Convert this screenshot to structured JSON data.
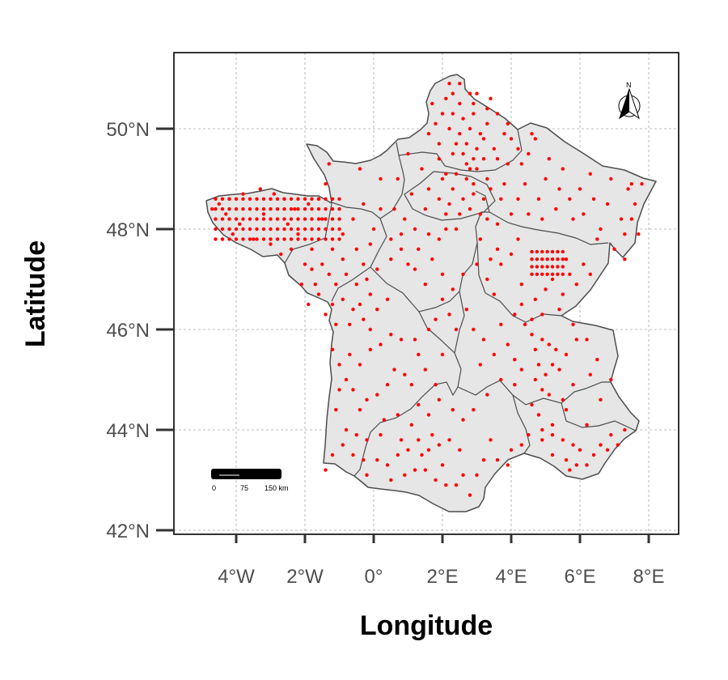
{
  "map": {
    "x_axis_title": "Longitude",
    "y_axis_title": "Latitude",
    "x_ticks": [
      {
        "value": -4,
        "label": "4°W"
      },
      {
        "value": -2,
        "label": "2°W"
      },
      {
        "value": 0,
        "label": "0°"
      },
      {
        "value": 2,
        "label": "2°E"
      },
      {
        "value": 4,
        "label": "4°E"
      },
      {
        "value": 6,
        "label": "6°E"
      },
      {
        "value": 8,
        "label": "8°E"
      }
    ],
    "y_ticks": [
      {
        "value": 42,
        "label": "42°N"
      },
      {
        "value": 44,
        "label": "44°N"
      },
      {
        "value": 46,
        "label": "46°N"
      },
      {
        "value": 48,
        "label": "48°N"
      },
      {
        "value": 50,
        "label": "50°N"
      }
    ],
    "x_range": [
      -5.8,
      8.8
    ],
    "y_range": [
      41.9,
      51.5
    ],
    "scale_bar": {
      "labels": [
        "0",
        "75",
        "150 km"
      ]
    },
    "north_arrow": {
      "label": "N"
    },
    "colors": {
      "land": "#e6e6e6",
      "border": "#4d4d4d",
      "points": "#ff0000",
      "grid": "#a6a6a6"
    }
  },
  "chart_data": {
    "type": "scatter",
    "xlabel": "Longitude",
    "ylabel": "Latitude",
    "xlim": [
      -5.8,
      8.8
    ],
    "ylim": [
      41.9,
      51.5
    ],
    "grid": true,
    "brittany_grid": {
      "lon_start": -4.6,
      "lon_end": -1.0,
      "lat_start": 47.8,
      "lat_end": 48.7,
      "step": 0.2
    },
    "burgundy_grid": {
      "lon_start": 4.6,
      "lon_end": 5.6,
      "lat_start": 47.1,
      "lat_end": 47.6,
      "step": 0.15
    },
    "points": [
      [
        2.2,
        50.9
      ],
      [
        2.5,
        50.9
      ],
      [
        2.3,
        50.7
      ],
      [
        2.8,
        50.7
      ],
      [
        2.9,
        50.5
      ],
      [
        3.4,
        50.6
      ],
      [
        3.6,
        50.3
      ],
      [
        3.9,
        50.1
      ],
      [
        3.8,
        49.9
      ],
      [
        2.0,
        50.3
      ],
      [
        2.3,
        50.3
      ],
      [
        2.6,
        50.2
      ],
      [
        2.9,
        50.3
      ],
      [
        2.2,
        50.0
      ],
      [
        2.5,
        49.9
      ],
      [
        2.8,
        50.0
      ],
      [
        3.1,
        49.9
      ],
      [
        3.3,
        50.1
      ],
      [
        2.4,
        49.7
      ],
      [
        2.7,
        49.7
      ],
      [
        3.0,
        49.6
      ],
      [
        3.2,
        49.8
      ],
      [
        3.5,
        49.6
      ],
      [
        2.3,
        49.5
      ],
      [
        2.6,
        49.5
      ],
      [
        2.9,
        49.4
      ],
      [
        3.2,
        49.4
      ],
      [
        1.9,
        49.7
      ],
      [
        1.9,
        49.4
      ],
      [
        2.1,
        49.1
      ],
      [
        2.4,
        49.1
      ],
      [
        2.7,
        49.0
      ],
      [
        3.0,
        49.2
      ],
      [
        3.3,
        49.0
      ],
      [
        2.3,
        48.8
      ],
      [
        2.6,
        48.6
      ],
      [
        2.9,
        48.7
      ],
      [
        3.2,
        48.6
      ],
      [
        3.4,
        48.8
      ],
      [
        1.6,
        48.8
      ],
      [
        1.9,
        48.6
      ],
      [
        2.2,
        48.5
      ],
      [
        2.5,
        48.3
      ],
      [
        2.8,
        48.4
      ],
      [
        3.1,
        48.3
      ],
      [
        3.8,
        48.9
      ],
      [
        3.7,
        48.6
      ],
      [
        3.9,
        49.3
      ],
      [
        4.3,
        49.3
      ],
      [
        4.5,
        49.5
      ],
      [
        4.2,
        49.6
      ],
      [
        4.7,
        49.8
      ],
      [
        5.1,
        49.4
      ],
      [
        5.5,
        49.2
      ],
      [
        5.0,
        49.0
      ],
      [
        5.4,
        48.8
      ],
      [
        6.3,
        49.1
      ],
      [
        6.0,
        48.8
      ],
      [
        6.4,
        48.6
      ],
      [
        6.1,
        48.3
      ],
      [
        5.7,
        48.6
      ],
      [
        4.4,
        48.9
      ],
      [
        4.8,
        48.6
      ],
      [
        4.2,
        48.6
      ],
      [
        4.5,
        48.3
      ],
      [
        4.9,
        48.2
      ],
      [
        7.4,
        48.8
      ],
      [
        7.6,
        48.5
      ],
      [
        7.5,
        48.2
      ],
      [
        7.7,
        47.9
      ],
      [
        7.3,
        47.9
      ],
      [
        7.5,
        48.9
      ],
      [
        7.2,
        48.2
      ],
      [
        7.8,
        48.9
      ],
      [
        5.8,
        48.2
      ],
      [
        3.1,
        47.8
      ],
      [
        3.6,
        47.6
      ],
      [
        3.4,
        47.4
      ],
      [
        3.7,
        47.3
      ],
      [
        3.3,
        47.0
      ],
      [
        3.5,
        46.7
      ],
      [
        4.3,
        46.9
      ],
      [
        4.7,
        46.6
      ],
      [
        5.0,
        46.8
      ],
      [
        5.2,
        47.0
      ],
      [
        5.6,
        47.4
      ],
      [
        4.9,
        46.3
      ],
      [
        4.4,
        46.1
      ],
      [
        4.6,
        45.9
      ],
      [
        4.7,
        45.6
      ],
      [
        4.9,
        45.8
      ],
      [
        5.1,
        45.7
      ],
      [
        5.3,
        45.6
      ],
      [
        5.6,
        45.5
      ],
      [
        4.8,
        45.3
      ],
      [
        5.0,
        45.1
      ],
      [
        5.2,
        45.3
      ],
      [
        4.7,
        45.0
      ],
      [
        4.9,
        44.8
      ],
      [
        5.1,
        44.7
      ],
      [
        5.4,
        45.2
      ],
      [
        4.6,
        44.5
      ],
      [
        4.8,
        44.3
      ],
      [
        5.2,
        44.1
      ],
      [
        5.6,
        44.4
      ],
      [
        4.5,
        43.9
      ],
      [
        4.9,
        43.8
      ],
      [
        5.2,
        43.9
      ],
      [
        5.5,
        43.8
      ],
      [
        5.8,
        43.7
      ],
      [
        4.3,
        43.7
      ],
      [
        6.0,
        43.6
      ],
      [
        5.6,
        43.4
      ],
      [
        5.9,
        43.3
      ],
      [
        6.6,
        43.7
      ],
      [
        5.7,
        43.2
      ],
      [
        6.4,
        43.5
      ],
      [
        7.1,
        43.7
      ],
      [
        4.0,
        43.6
      ],
      [
        3.9,
        43.3
      ],
      [
        3.6,
        43.4
      ],
      [
        3.2,
        43.4
      ],
      [
        3.0,
        43.1
      ],
      [
        2.6,
        43.1
      ],
      [
        2.8,
        42.7
      ],
      [
        2.4,
        42.9
      ],
      [
        2.1,
        42.9
      ],
      [
        1.8,
        43.0
      ],
      [
        1.5,
        43.2
      ],
      [
        1.4,
        43.5
      ],
      [
        1.6,
        43.6
      ],
      [
        1.9,
        43.7
      ],
      [
        2.2,
        43.8
      ],
      [
        1.7,
        43.9
      ],
      [
        1.3,
        43.8
      ],
      [
        1.0,
        43.6
      ],
      [
        0.7,
        43.5
      ],
      [
        0.4,
        43.3
      ],
      [
        0.1,
        43.4
      ],
      [
        -0.3,
        43.4
      ],
      [
        -0.6,
        43.5
      ],
      [
        -0.9,
        43.7
      ],
      [
        -0.5,
        43.9
      ],
      [
        -0.2,
        43.8
      ],
      [
        0.2,
        43.9
      ],
      [
        -1.2,
        43.5
      ],
      [
        -1.4,
        43.2
      ],
      [
        -0.8,
        44.0
      ],
      [
        -0.4,
        44.4
      ],
      [
        -0.2,
        44.6
      ],
      [
        0.1,
        44.7
      ],
      [
        0.4,
        44.9
      ],
      [
        0.6,
        45.2
      ],
      [
        -0.6,
        44.8
      ],
      [
        -0.8,
        45.0
      ],
      [
        -1.0,
        45.3
      ],
      [
        -0.7,
        45.5
      ],
      [
        -0.4,
        45.3
      ],
      [
        -0.1,
        45.6
      ],
      [
        0.2,
        45.7
      ],
      [
        0.5,
        45.9
      ],
      [
        0.8,
        45.8
      ],
      [
        1.2,
        45.8
      ],
      [
        1.6,
        46.0
      ],
      [
        1.3,
        45.5
      ],
      [
        1.5,
        45.2
      ],
      [
        0.9,
        45.1
      ],
      [
        1.1,
        44.9
      ],
      [
        1.3,
        44.5
      ],
      [
        0.7,
        44.3
      ],
      [
        0.3,
        44.2
      ],
      [
        -0.1,
        46.0
      ],
      [
        -0.3,
        46.2
      ],
      [
        -0.6,
        46.4
      ],
      [
        -0.9,
        46.6
      ],
      [
        -1.2,
        46.5
      ],
      [
        -1.4,
        46.3
      ],
      [
        -0.7,
        46.1
      ],
      [
        -0.4,
        46.5
      ],
      [
        -0.1,
        46.7
      ],
      [
        0.1,
        46.4
      ],
      [
        0.4,
        46.6
      ],
      [
        -0.2,
        47.0
      ],
      [
        -0.5,
        46.9
      ],
      [
        -0.8,
        47.1
      ],
      [
        -1.1,
        46.9
      ],
      [
        -0.3,
        47.3
      ],
      [
        0.1,
        47.2
      ],
      [
        0.5,
        47.4
      ],
      [
        0.8,
        47.6
      ],
      [
        1.0,
        47.3
      ],
      [
        1.3,
        47.6
      ],
      [
        1.6,
        47.9
      ],
      [
        1.9,
        47.8
      ],
      [
        2.1,
        48.0
      ],
      [
        1.2,
        48.0
      ],
      [
        0.9,
        48.2
      ],
      [
        0.6,
        48.4
      ],
      [
        0.2,
        48.4
      ],
      [
        -0.3,
        48.5
      ],
      [
        -0.6,
        48.2
      ],
      [
        -0.9,
        47.9
      ],
      [
        -1.2,
        47.6
      ],
      [
        -1.5,
        47.3
      ],
      [
        -1.8,
        47.2
      ],
      [
        -2.0,
        47.3
      ],
      [
        -1.7,
        46.9
      ],
      [
        -2.1,
        46.9
      ],
      [
        -1.6,
        48.6
      ],
      [
        -1.4,
        48.9
      ],
      [
        -1.3,
        49.3
      ],
      [
        -0.4,
        49.2
      ],
      [
        0.2,
        49.0
      ],
      [
        1.0,
        49.5
      ],
      [
        1.4,
        49.2
      ],
      [
        0.7,
        49.0
      ],
      [
        1.1,
        48.7
      ],
      [
        1.5,
        48.4
      ],
      [
        1.2,
        47.2
      ],
      [
        1.5,
        46.9
      ],
      [
        2.0,
        46.6
      ],
      [
        2.3,
        46.8
      ],
      [
        2.6,
        47.1
      ],
      [
        3.0,
        47.3
      ],
      [
        2.7,
        46.4
      ],
      [
        2.2,
        46.3
      ],
      [
        1.8,
        46.2
      ],
      [
        2.9,
        46.0
      ],
      [
        3.2,
        45.8
      ],
      [
        3.5,
        45.5
      ],
      [
        3.1,
        45.3
      ],
      [
        3.7,
        45.0
      ],
      [
        3.3,
        44.7
      ],
      [
        2.9,
        44.4
      ],
      [
        2.6,
        44.2
      ],
      [
        2.3,
        44.4
      ],
      [
        1.9,
        44.6
      ],
      [
        4.1,
        44.9
      ],
      [
        -2.7,
        47.5
      ],
      [
        -2.4,
        47.6
      ],
      [
        -3.0,
        47.7
      ],
      [
        -4.1,
        47.9
      ],
      [
        -4.4,
        47.8
      ],
      [
        -3.5,
        47.8
      ],
      [
        -3.9,
        48.1
      ],
      [
        -3.2,
        48.3
      ],
      [
        -2.5,
        48.1
      ],
      [
        -2.2,
        47.9
      ],
      [
        -1.8,
        47.6
      ],
      [
        -1.5,
        48.2
      ],
      [
        -1.9,
        48.5
      ],
      [
        -2.3,
        48.4
      ],
      [
        -2.6,
        48.6
      ],
      [
        -2.9,
        48.7
      ],
      [
        -3.3,
        48.8
      ],
      [
        -3.8,
        48.7
      ],
      [
        -4.2,
        48.6
      ],
      [
        -4.5,
        48.5
      ],
      [
        -4.7,
        48.4
      ],
      [
        -4.3,
        48.3
      ],
      [
        1.8,
        50.1
      ],
      [
        1.6,
        49.9
      ],
      [
        2.0,
        49.0
      ],
      [
        2.9,
        48.9
      ],
      [
        3.3,
        48.2
      ],
      [
        4.0,
        48.3
      ],
      [
        5.3,
        48.4
      ],
      [
        6.6,
        48.0
      ],
      [
        7.0,
        47.6
      ],
      [
        7.3,
        47.4
      ],
      [
        6.8,
        48.5
      ],
      [
        6.9,
        49.0
      ],
      [
        6.5,
        47.8
      ],
      [
        6.1,
        47.3
      ],
      [
        5.9,
        46.9
      ],
      [
        5.4,
        46.4
      ],
      [
        5.8,
        46.1
      ],
      [
        6.2,
        45.8
      ],
      [
        6.5,
        45.4
      ],
      [
        6.9,
        45.0
      ],
      [
        6.6,
        44.6
      ],
      [
        6.2,
        44.1
      ],
      [
        6.9,
        43.9
      ],
      [
        7.3,
        44.0
      ],
      [
        3.7,
        46.1
      ],
      [
        3.9,
        45.7
      ],
      [
        4.1,
        45.4
      ],
      [
        4.3,
        45.2
      ],
      [
        0.5,
        47.8
      ],
      [
        0.8,
        47.9
      ],
      [
        -0.1,
        47.7
      ],
      [
        -0.5,
        47.6
      ],
      [
        -0.9,
        47.4
      ],
      [
        -1.3,
        47.1
      ],
      [
        0.0,
        48.0
      ],
      [
        1.7,
        47.4
      ],
      [
        2.0,
        47.1
      ],
      [
        2.4,
        46.0
      ],
      [
        2.0,
        45.5
      ],
      [
        1.8,
        44.9
      ],
      [
        1.6,
        44.3
      ],
      [
        1.1,
        44.1
      ],
      [
        0.8,
        43.8
      ],
      [
        -1.1,
        44.4
      ],
      [
        -1.0,
        44.8
      ],
      [
        -1.2,
        45.6
      ],
      [
        -1.1,
        46.1
      ],
      [
        -1.6,
        46.7
      ],
      [
        -1.9,
        46.5
      ],
      [
        2.8,
        49.2
      ],
      [
        3.6,
        49.4
      ],
      [
        4.0,
        49.8
      ],
      [
        4.6,
        49.9
      ],
      [
        2.5,
        50.5
      ],
      [
        3.0,
        50.7
      ],
      [
        3.3,
        50.4
      ],
      [
        2.1,
        50.6
      ],
      [
        1.7,
        50.5
      ],
      [
        2.7,
        49.3
      ],
      [
        2.1,
        48.3
      ],
      [
        2.4,
        48.0
      ],
      [
        3.6,
        48.1
      ],
      [
        4.2,
        47.8
      ],
      [
        4.0,
        47.5
      ],
      [
        5.5,
        46.7
      ],
      [
        5.7,
        47.1
      ],
      [
        6.3,
        47.1
      ],
      [
        4.3,
        46.5
      ],
      [
        4.1,
        46.3
      ],
      [
        4.6,
        46.2
      ],
      [
        5.9,
        45.8
      ],
      [
        6.3,
        45.1
      ],
      [
        5.8,
        44.9
      ],
      [
        5.5,
        44.6
      ],
      [
        4.9,
        44.0
      ],
      [
        5.2,
        43.5
      ],
      [
        6.2,
        43.3
      ],
      [
        6.8,
        43.6
      ],
      [
        3.4,
        43.8
      ],
      [
        2.5,
        43.6
      ],
      [
        2.0,
        43.3
      ],
      [
        1.2,
        43.2
      ],
      [
        0.9,
        43.1
      ],
      [
        0.5,
        43.0
      ],
      [
        -0.2,
        43.1
      ]
    ]
  }
}
